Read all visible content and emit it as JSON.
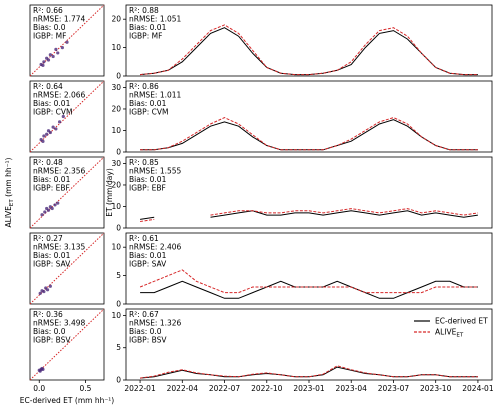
{
  "chart_data": [
    {
      "type": "scatter",
      "annotations": [
        "R²: 0.66",
        "nRMSE: 1.774",
        "Bias: 0.0",
        "IGBP: MF"
      ],
      "color": "#4b2a7a",
      "x": [
        0.02,
        0.05,
        0.08,
        0.1,
        0.12,
        0.15,
        0.18,
        0.2,
        0.25,
        0.04,
        0.3
      ],
      "y": [
        0.03,
        0.06,
        0.1,
        0.08,
        0.14,
        0.12,
        0.2,
        0.16,
        0.22,
        0.02,
        0.28
      ],
      "xlim": [
        -0.1,
        0.7
      ],
      "ylim": [
        -0.1,
        0.7
      ]
    },
    {
      "type": "scatter",
      "annotations": [
        "R²: 0.64",
        "nRMSE: 2.066",
        "Bias: 0.01",
        "IGBP: CVM"
      ],
      "color": "#4b2a7a",
      "x": [
        0.02,
        0.05,
        0.08,
        0.1,
        0.12,
        0.15,
        0.18,
        0.22,
        0.26,
        0.04
      ],
      "y": [
        0.04,
        0.08,
        0.1,
        0.14,
        0.12,
        0.18,
        0.16,
        0.24,
        0.3,
        0.02
      ],
      "xlim": [
        -0.1,
        0.7
      ],
      "ylim": [
        -0.1,
        0.7
      ]
    },
    {
      "type": "scatter",
      "annotations": [
        "R²: 0.48",
        "nRMSE: 2.356",
        "Bias: 0.01",
        "IGBP: EBF"
      ],
      "color": "#4b2a7a",
      "x": [
        0.03,
        0.06,
        0.08,
        0.1,
        0.12,
        0.14,
        0.17,
        0.2
      ],
      "y": [
        0.05,
        0.08,
        0.12,
        0.1,
        0.14,
        0.12,
        0.16,
        0.18
      ],
      "xlim": [
        -0.1,
        0.7
      ],
      "ylim": [
        -0.1,
        0.7
      ],
      "ylabel": "ALIVE",
      "ylabel_sub": "ET",
      "ylabel_unit": " (mm hh⁻¹)"
    },
    {
      "type": "scatter",
      "annotations": [
        "R²: 0.27",
        "nRMSE: 3.135",
        "Bias: 0.01",
        "IGBP: SAV"
      ],
      "color": "#4b2a7a",
      "x": [
        0.01,
        0.03,
        0.05,
        0.07,
        0.09,
        0.12
      ],
      "y": [
        0.02,
        0.05,
        0.04,
        0.08,
        0.06,
        0.1
      ],
      "xlim": [
        -0.1,
        0.7
      ],
      "ylim": [
        -0.1,
        0.7
      ]
    },
    {
      "type": "scatter",
      "annotations": [
        "R²: 0.36",
        "nRMSE: 3.498",
        "Bias: 0.0",
        "IGBP: BSV"
      ],
      "color": "#4b2a7a",
      "x": [
        0.0,
        0.01,
        0.02,
        0.03,
        0.04
      ],
      "y": [
        0.01,
        0.0,
        0.02,
        0.03,
        0.02
      ],
      "xlim": [
        -0.1,
        0.7
      ],
      "ylim": [
        -0.1,
        0.7
      ],
      "xticks": [
        {
          "value": 0,
          "label": "0.0"
        },
        {
          "value": 0.5,
          "label": "0.5"
        }
      ],
      "xlabel": "EC-derived ET (mm hh⁻¹)"
    },
    {
      "type": "line",
      "annotations": [
        "R²: 0.88",
        "nRMSE: 1.051",
        "Bias: 0.01",
        "IGBP: MF"
      ],
      "x": [
        "2022-01",
        "2022-02",
        "2022-03",
        "2022-04",
        "2022-05",
        "2022-06",
        "2022-07",
        "2022-08",
        "2022-09",
        "2022-10",
        "2022-11",
        "2022-12",
        "2023-01",
        "2023-02",
        "2023-03",
        "2023-04",
        "2023-05",
        "2023-06",
        "2023-07",
        "2023-08",
        "2023-09",
        "2023-10",
        "2023-11",
        "2023-12",
        "2024-01"
      ],
      "series": [
        {
          "name": "EC-derived ET",
          "color": "#000000",
          "values": [
            0.5,
            1,
            2,
            5,
            10,
            15,
            17,
            14,
            8,
            3,
            1,
            0.5,
            0.5,
            1,
            2,
            4,
            10,
            15,
            16,
            13,
            8,
            3,
            1,
            0.5,
            0.5
          ]
        },
        {
          "name": "ALIVE",
          "color": "#d62728",
          "values": [
            0.5,
            1,
            2,
            6,
            11,
            16,
            18,
            15,
            9,
            3,
            1,
            0.5,
            0.5,
            1,
            2,
            5,
            11,
            16,
            17,
            14,
            8,
            3,
            1,
            0.5,
            0.5
          ]
        }
      ],
      "xlim": [
        "2021-12",
        "2024-02"
      ],
      "ylim": [
        0,
        25
      ],
      "yticks": [
        0,
        10,
        20
      ]
    },
    {
      "type": "line",
      "annotations": [
        "R²: 0.86",
        "nRMSE: 1.011",
        "Bias: 0.01",
        "IGBP: CVM"
      ],
      "x": [
        "2022-01",
        "2022-02",
        "2022-03",
        "2022-04",
        "2022-05",
        "2022-06",
        "2022-07",
        "2022-08",
        "2022-09",
        "2022-10",
        "2022-11",
        "2022-12",
        "2023-01",
        "2023-02",
        "2023-03",
        "2023-04",
        "2023-05",
        "2023-06",
        "2023-07",
        "2023-08",
        "2023-09",
        "2023-10",
        "2023-11",
        "2023-12",
        "2024-01"
      ],
      "series": [
        {
          "name": "EC-derived ET",
          "color": "#000000",
          "values": [
            1,
            1,
            2,
            4,
            8,
            12,
            14,
            12,
            7,
            3,
            1,
            1,
            1,
            1,
            3,
            5,
            9,
            13,
            15,
            12,
            7,
            3,
            1,
            1,
            1
          ]
        },
        {
          "name": "ALIVE",
          "color": "#d62728",
          "values": [
            1,
            1,
            2,
            5,
            9,
            13,
            16,
            13,
            8,
            3,
            1,
            1,
            1,
            1,
            3,
            6,
            10,
            14,
            16,
            13,
            7,
            3,
            1,
            1,
            1
          ]
        }
      ],
      "xlim": [
        "2021-12",
        "2024-02"
      ],
      "ylim": [
        0,
        33
      ],
      "yticks": [
        0,
        10,
        20,
        30
      ]
    },
    {
      "type": "line",
      "annotations": [
        "R²: 0.85",
        "nRMSE: 1.555",
        "Bias: 0.01",
        "IGBP: EBF"
      ],
      "ylabel": "ET (mm/day)",
      "x": [
        "2022-01",
        "2022-02",
        "2022-03",
        "2022-04",
        "2022-05",
        "2022-06",
        "2022-07",
        "2022-08",
        "2022-09",
        "2022-10",
        "2022-11",
        "2022-12",
        "2023-01",
        "2023-02",
        "2023-03",
        "2023-04",
        "2023-05",
        "2023-06",
        "2023-07",
        "2023-08",
        "2023-09",
        "2023-10",
        "2023-11",
        "2023-12",
        "2024-01"
      ],
      "series": [
        {
          "name": "EC-derived ET",
          "color": "#000000",
          "values": [
            4,
            5,
            null,
            null,
            null,
            5,
            6,
            7,
            8,
            6,
            6,
            7,
            7,
            6,
            7,
            8,
            7,
            6,
            7,
            8,
            6,
            7,
            6,
            5,
            6
          ]
        },
        {
          "name": "ALIVE",
          "color": "#d62728",
          "values": [
            3,
            4,
            null,
            null,
            null,
            6,
            7,
            8,
            8,
            7,
            7,
            8,
            8,
            7,
            8,
            9,
            8,
            7,
            8,
            9,
            7,
            8,
            7,
            6,
            7
          ]
        }
      ],
      "xlim": [
        "2021-12",
        "2024-02"
      ],
      "ylim": [
        0,
        33
      ],
      "yticks": [
        0,
        10,
        20,
        30
      ]
    },
    {
      "type": "line",
      "annotations": [
        "R²: 0.61",
        "nRMSE: 2.406",
        "Bias: 0.01",
        "IGBP: SAV"
      ],
      "x": [
        "2022-01",
        "2022-02",
        "2022-03",
        "2022-04",
        "2022-05",
        "2022-06",
        "2022-07",
        "2022-08",
        "2022-09",
        "2022-10",
        "2022-11",
        "2022-12",
        "2023-01",
        "2023-02",
        "2023-03",
        "2023-04",
        "2023-05",
        "2023-06",
        "2023-07",
        "2023-08",
        "2023-09",
        "2023-10",
        "2023-11",
        "2023-12",
        "2024-01"
      ],
      "series": [
        {
          "name": "EC-derived ET",
          "color": "#000000",
          "values": [
            2,
            2,
            3,
            4,
            3,
            2,
            1,
            1,
            2,
            3,
            4,
            3,
            3,
            3,
            4,
            3,
            2,
            1,
            1,
            2,
            3,
            4,
            4,
            3,
            3
          ]
        },
        {
          "name": "ALIVE",
          "color": "#d62728",
          "values": [
            3,
            4,
            5,
            6,
            4,
            3,
            2,
            2,
            3,
            3,
            3,
            3,
            3,
            3,
            3,
            3,
            2,
            2,
            2,
            2,
            2,
            3,
            3,
            3,
            3
          ]
        }
      ],
      "xlim": [
        "2021-12",
        "2024-02"
      ],
      "ylim": [
        0,
        12.5
      ],
      "yticks": [
        0,
        5,
        10
      ]
    },
    {
      "type": "line",
      "annotations": [
        "R²: 0.67",
        "nRMSE: 1.326",
        "Bias: 0.0",
        "IGBP: BSV"
      ],
      "legend": "upper right",
      "x": [
        "2022-01",
        "2022-02",
        "2022-03",
        "2022-04",
        "2022-05",
        "2022-06",
        "2022-07",
        "2022-08",
        "2022-09",
        "2022-10",
        "2022-11",
        "2022-12",
        "2023-01",
        "2023-02",
        "2023-03",
        "2023-04",
        "2023-05",
        "2023-06",
        "2023-07",
        "2023-08",
        "2023-09",
        "2023-10",
        "2023-11",
        "2023-12",
        "2024-01"
      ],
      "series": [
        {
          "name": "EC-derived ET",
          "color": "#000000",
          "values": [
            0.3,
            0.5,
            1,
            1.5,
            1,
            0.8,
            0.5,
            0.5,
            0.8,
            1,
            0.8,
            0.5,
            0.5,
            0.8,
            2,
            1.5,
            1,
            0.8,
            0.5,
            0.5,
            0.8,
            0.8,
            0.5,
            0.5,
            0.5
          ]
        },
        {
          "name": "ALIVE",
          "name_sub": "ET",
          "color": "#d62728",
          "values": [
            0.3,
            0.6,
            1.2,
            1.6,
            1.1,
            0.8,
            0.6,
            0.5,
            0.9,
            1.1,
            0.8,
            0.5,
            0.5,
            0.9,
            2.2,
            1.6,
            1.1,
            0.8,
            0.5,
            0.5,
            0.8,
            0.8,
            0.5,
            0.5,
            0.5
          ]
        }
      ],
      "xlim": [
        "2021-12",
        "2024-02"
      ],
      "ylim": [
        0,
        11
      ],
      "yticks": [
        0,
        5,
        10
      ],
      "xticks": [
        "2022-01",
        "2022-04",
        "2022-07",
        "2022-10",
        "2023-01",
        "2023-04",
        "2023-07",
        "2023-10",
        "2024-01"
      ]
    }
  ]
}
